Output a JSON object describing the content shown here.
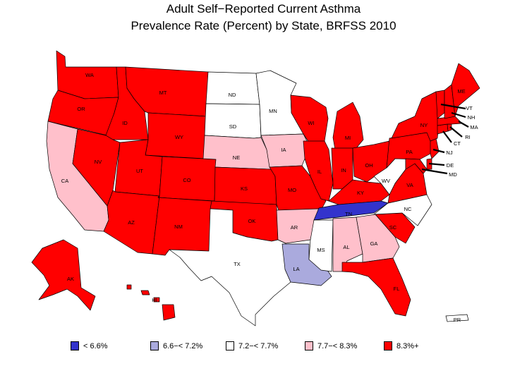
{
  "title_line1": "Adult Self−Reported Current Asthma",
  "title_line2": "Prevalence Rate (Percent) by State, BRFSS 2010",
  "colors": {
    "c1": "#3333cc",
    "c2": "#aaaadd",
    "c3": "#ffffff",
    "c4": "#ffc0cb",
    "c5": "#ff0000"
  },
  "legend": [
    {
      "color_key": "c1",
      "label": "< 6.6%"
    },
    {
      "color_key": "c2",
      "label": "6.6−< 7.2%"
    },
    {
      "color_key": "c3",
      "label": "7.2−< 7.7%"
    },
    {
      "color_key": "c4",
      "label": "7.7−< 8.3%"
    },
    {
      "color_key": "c5",
      "label": "8.3%+"
    }
  ],
  "states": {
    "WA": "c5",
    "OR": "c5",
    "CA": "c4",
    "ID": "c5",
    "NV": "c5",
    "MT": "c5",
    "WY": "c5",
    "UT": "c5",
    "AZ": "c5",
    "CO": "c5",
    "NM": "c5",
    "ND": "c3",
    "SD": "c3",
    "NE": "c4",
    "KS": "c5",
    "OK": "c5",
    "TX": "c3",
    "MN": "c3",
    "IA": "c4",
    "MO": "c5",
    "AR": "c4",
    "LA": "c2",
    "WI": "c5",
    "IL": "c5",
    "MS": "c3",
    "MI": "c5",
    "IN": "c5",
    "OH": "c5",
    "KY": "c5",
    "TN": "c1",
    "AL": "c4",
    "GA": "c4",
    "FL": "c5",
    "SC": "c5",
    "NC": "c3",
    "VA": "c5",
    "WV": "c3",
    "PA": "c5",
    "NY": "c5",
    "ME": "c5",
    "VT": "c5",
    "NH": "c5",
    "MA": "c5",
    "RI": "c5",
    "CT": "c5",
    "NJ": "c5",
    "DE": "c5",
    "MD": "c5",
    "AK": "c5",
    "HI": "c5",
    "PR": "c3"
  }
}
